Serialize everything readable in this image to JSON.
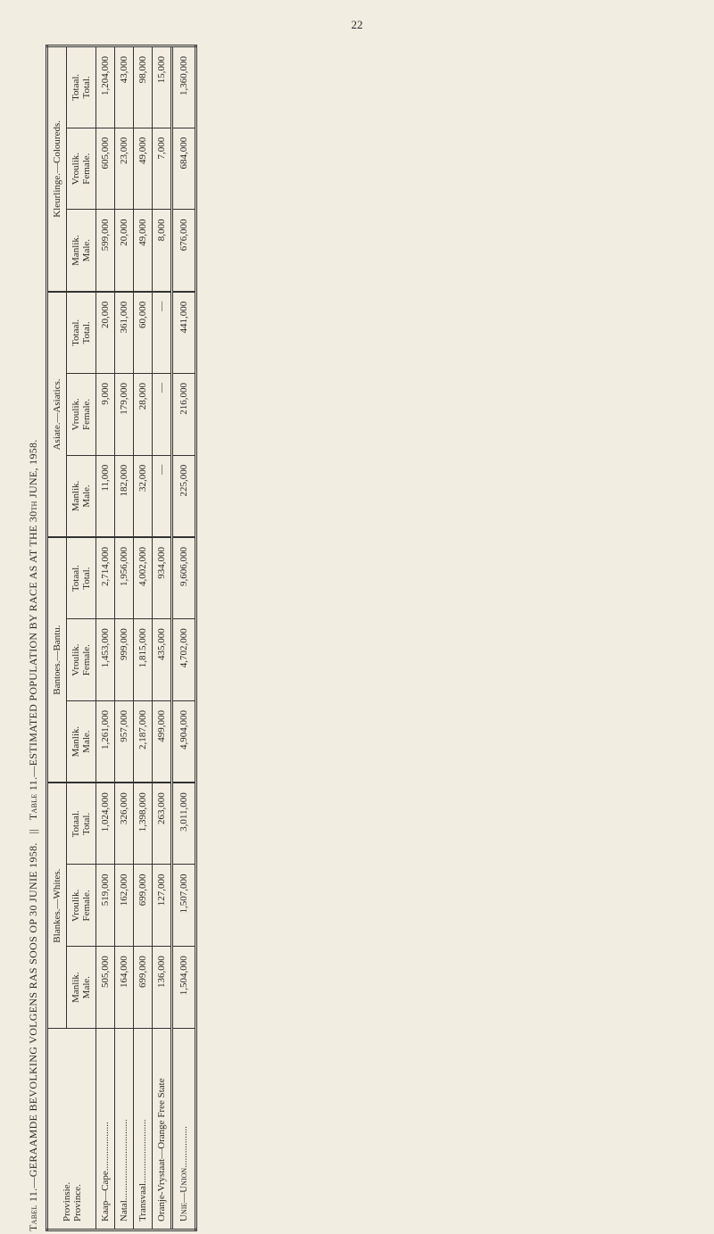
{
  "page_number": "22",
  "title_left": "Tabel 11.—GERAAMDE BEVOLKING VOLGENS RAS SOOS OP 30 JUNIE 1958.",
  "title_right": "Table 11.—ESTIMATED POPULATION BY RACE AS AT THE 30th JUNE, 1958.",
  "col_province_af": "Provinsie.",
  "col_province_en": "Province.",
  "groups": {
    "whites": "Blankes.—Whites.",
    "bantu": "Bantoes.—Bantu.",
    "asiatics": "Asiate.—Asiatics.",
    "coloureds": "Kleurlinge.—Coloureds."
  },
  "sub": {
    "male_af": "Manlik.",
    "male_en": "Male.",
    "female_af": "Vroulik.",
    "female_en": "Female.",
    "total_af": "Totaal.",
    "total_en": "Total."
  },
  "rows": [
    {
      "label": "Kaap—Cape....................",
      "cells": [
        "505,000",
        "519,000",
        "1,024,000",
        "1,261,000",
        "1,453,000",
        "2,714,000",
        "11,000",
        "9,000",
        "20,000",
        "599,000",
        "605,000",
        "1,204,000"
      ]
    },
    {
      "label": "Natal.................................",
      "cells": [
        "164,000",
        "162,000",
        "326,000",
        "957,000",
        "999,000",
        "1,956,000",
        "182,000",
        "179,000",
        "361,000",
        "20,000",
        "23,000",
        "43,000"
      ]
    },
    {
      "label": "Transvaal..........................",
      "cells": [
        "699,000",
        "699,000",
        "1,398,000",
        "2,187,000",
        "1,815,000",
        "4,002,000",
        "32,000",
        "28,000",
        "60,000",
        "49,000",
        "49,000",
        "98,000"
      ]
    },
    {
      "label": "Oranje-Vrystaat—Orange Free State",
      "cells": [
        "136,000",
        "127,000",
        "263,000",
        "499,000",
        "435,000",
        "934,000",
        "—",
        "—",
        "—",
        "8,000",
        "7,000",
        "15,000"
      ]
    }
  ],
  "union": {
    "label": "Unie—Union.................",
    "cells": [
      "1,504,000",
      "1,507,000",
      "3,011,000",
      "4,904,000",
      "4,702,000",
      "9,606,000",
      "225,000",
      "216,000",
      "441,000",
      "676,000",
      "684,000",
      "1,360,000"
    ]
  },
  "style": {
    "bg": "#f2ede1",
    "text": "#2a2a25",
    "font_family": "Times New Roman"
  }
}
